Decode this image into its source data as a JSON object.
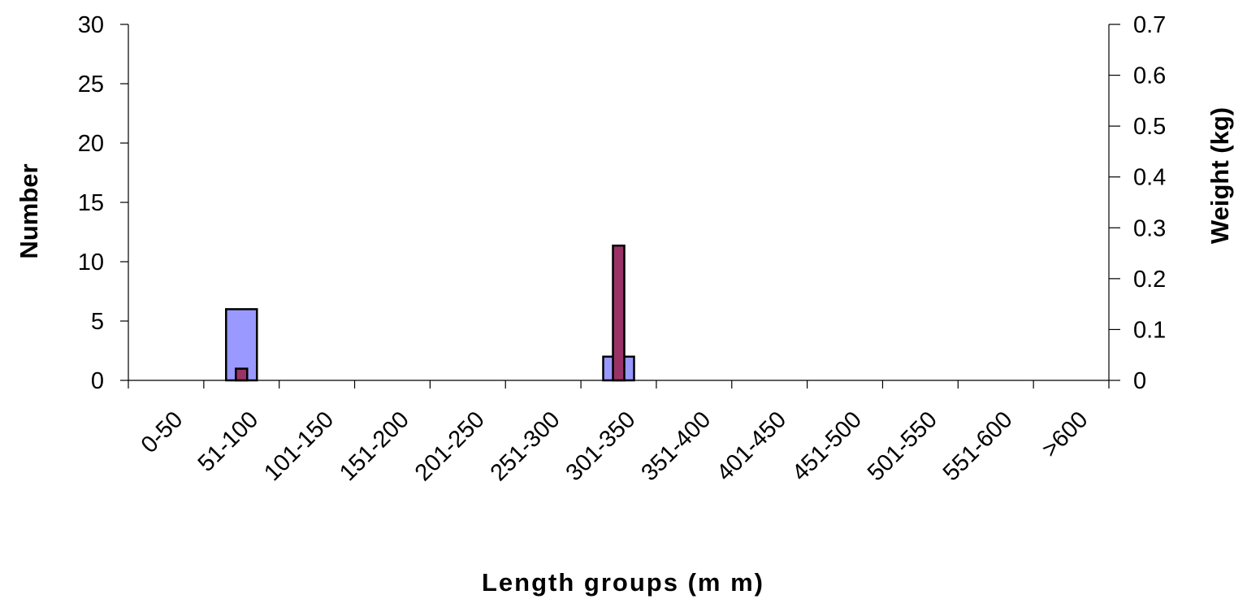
{
  "chart_data": {
    "type": "bar",
    "xlabel": "Length groups (m m)",
    "ylabel": "Number",
    "y2label": "Weight (kg)",
    "categories": [
      "0-50",
      "51-100",
      "101-150",
      "151-200",
      "201-250",
      "251-300",
      "301-350",
      "351-400",
      "401-450",
      "451-500",
      "501-550",
      "551-600",
      ">600"
    ],
    "ylim": [
      0,
      30
    ],
    "y_ticks": [
      "0",
      "5",
      "10",
      "15",
      "20",
      "25",
      "30"
    ],
    "y2lim": [
      0,
      0.7
    ],
    "y2_ticks": [
      "0",
      "0.1",
      "0.2",
      "0.3",
      "0.4",
      "0.5",
      "0.6",
      "0.7"
    ],
    "series": [
      {
        "name": "",
        "axis": "left",
        "color": "#9999ff",
        "values": [
          0,
          6,
          0,
          0,
          0,
          0,
          2,
          0,
          0,
          0,
          0,
          0,
          0
        ]
      },
      {
        "name": "",
        "axis": "right",
        "color": "#993366",
        "values": [
          0,
          0.023,
          0,
          0,
          0,
          0,
          0.265,
          0,
          0,
          0,
          0,
          0,
          0
        ]
      }
    ],
    "grid": false,
    "legend": "none"
  }
}
